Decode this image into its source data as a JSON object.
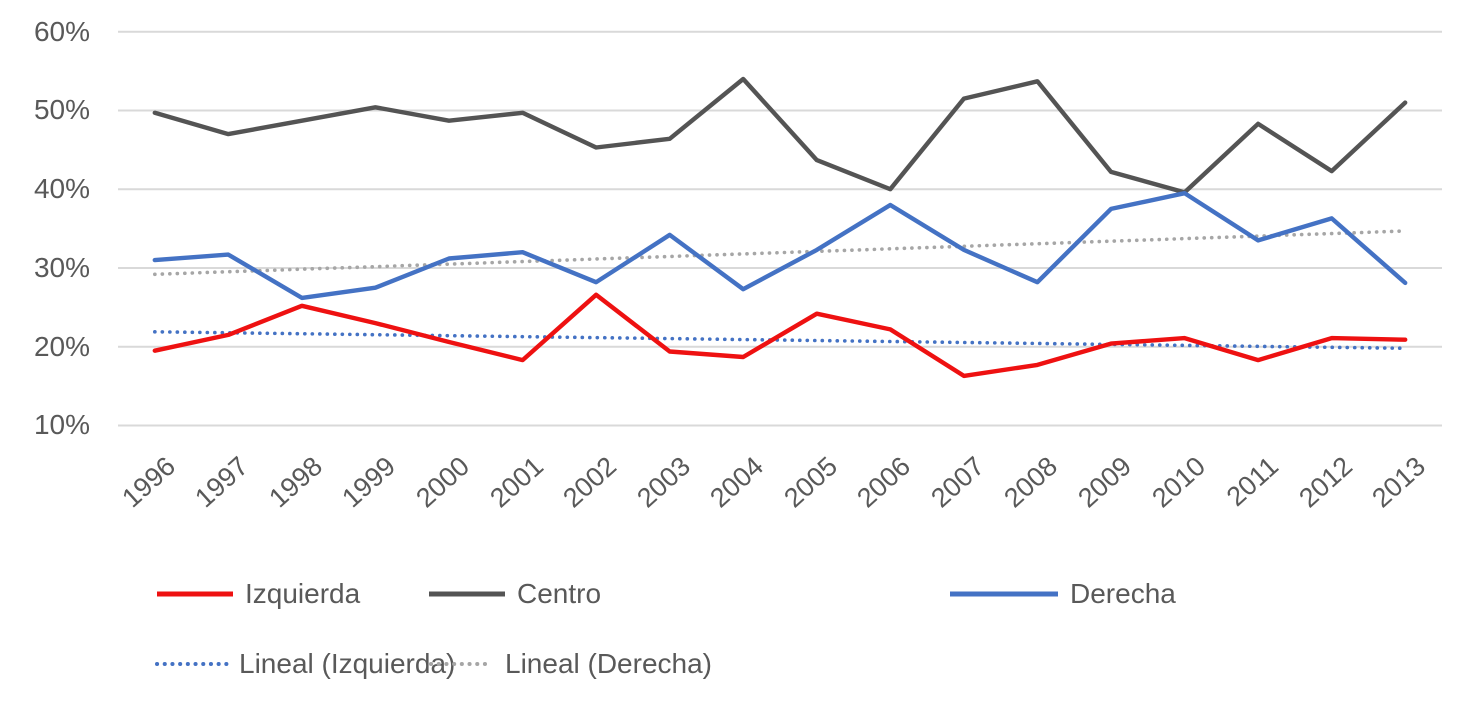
{
  "chart_data": {
    "type": "line",
    "title": "",
    "xlabel": "",
    "ylabel": "",
    "categories": [
      "1996",
      "1997",
      "1998",
      "1999",
      "2000",
      "2001",
      "2002",
      "2003",
      "2004",
      "2005",
      "2006",
      "2007",
      "2008",
      "2009",
      "2010",
      "2011",
      "2012",
      "2013"
    ],
    "y_axis": {
      "min": 10,
      "max": 60,
      "tick_step": 10,
      "unit": "%",
      "ticks": [
        "60%",
        "50%",
        "40%",
        "30%",
        "20%",
        "10%"
      ]
    },
    "grid": "horizontal",
    "legend_position": "bottom",
    "series": [
      {
        "name": "Izquierda",
        "color": "#ee1111",
        "line": "solid",
        "values": [
          19.5,
          21.5,
          25.2,
          23.0,
          20.6,
          18.3,
          26.6,
          19.4,
          18.7,
          24.2,
          22.2,
          16.3,
          17.7,
          20.4,
          21.1,
          18.3,
          21.1,
          20.9
        ]
      },
      {
        "name": "Centro",
        "color": "#545454",
        "line": "solid",
        "values": [
          49.7,
          47.0,
          48.7,
          50.4,
          48.7,
          49.7,
          45.3,
          46.4,
          54.0,
          43.7,
          40.0,
          51.5,
          53.7,
          42.2,
          39.6,
          48.3,
          42.3,
          51.0
        ]
      },
      {
        "name": "Derecha",
        "color": "#4472c4",
        "line": "solid",
        "values": [
          31.0,
          31.7,
          26.2,
          27.5,
          31.2,
          32.0,
          28.2,
          34.2,
          27.3,
          32.3,
          38.0,
          32.3,
          28.2,
          37.5,
          39.5,
          33.5,
          36.3,
          28.1
        ]
      }
    ],
    "trendlines": [
      {
        "name": "Lineal (Izquierda)",
        "of_series": "Izquierda",
        "color": "#4472c4",
        "line": "dotted",
        "start": 21.9,
        "end": 19.8
      },
      {
        "name": "Lineal (Derecha)",
        "of_series": "Derecha",
        "color": "#a6a6a6",
        "line": "dotted",
        "start": 29.2,
        "end": 34.7
      }
    ]
  },
  "legend": {
    "items": [
      {
        "label": "Izquierda",
        "marker": "solid",
        "color": "#ee1111"
      },
      {
        "label": "Centro",
        "marker": "solid",
        "color": "#545454"
      },
      {
        "label": "Derecha",
        "marker": "solid",
        "color": "#4472c4"
      },
      {
        "label": "Lineal (Izquierda)",
        "marker": "dotted",
        "color": "#4472c4"
      },
      {
        "label": "Lineal (Derecha)",
        "marker": "dotted",
        "color": "#a6a6a6"
      }
    ]
  },
  "colors": {
    "gridline": "#d9d9d9",
    "axis_text": "#595959",
    "background": "#ffffff"
  }
}
